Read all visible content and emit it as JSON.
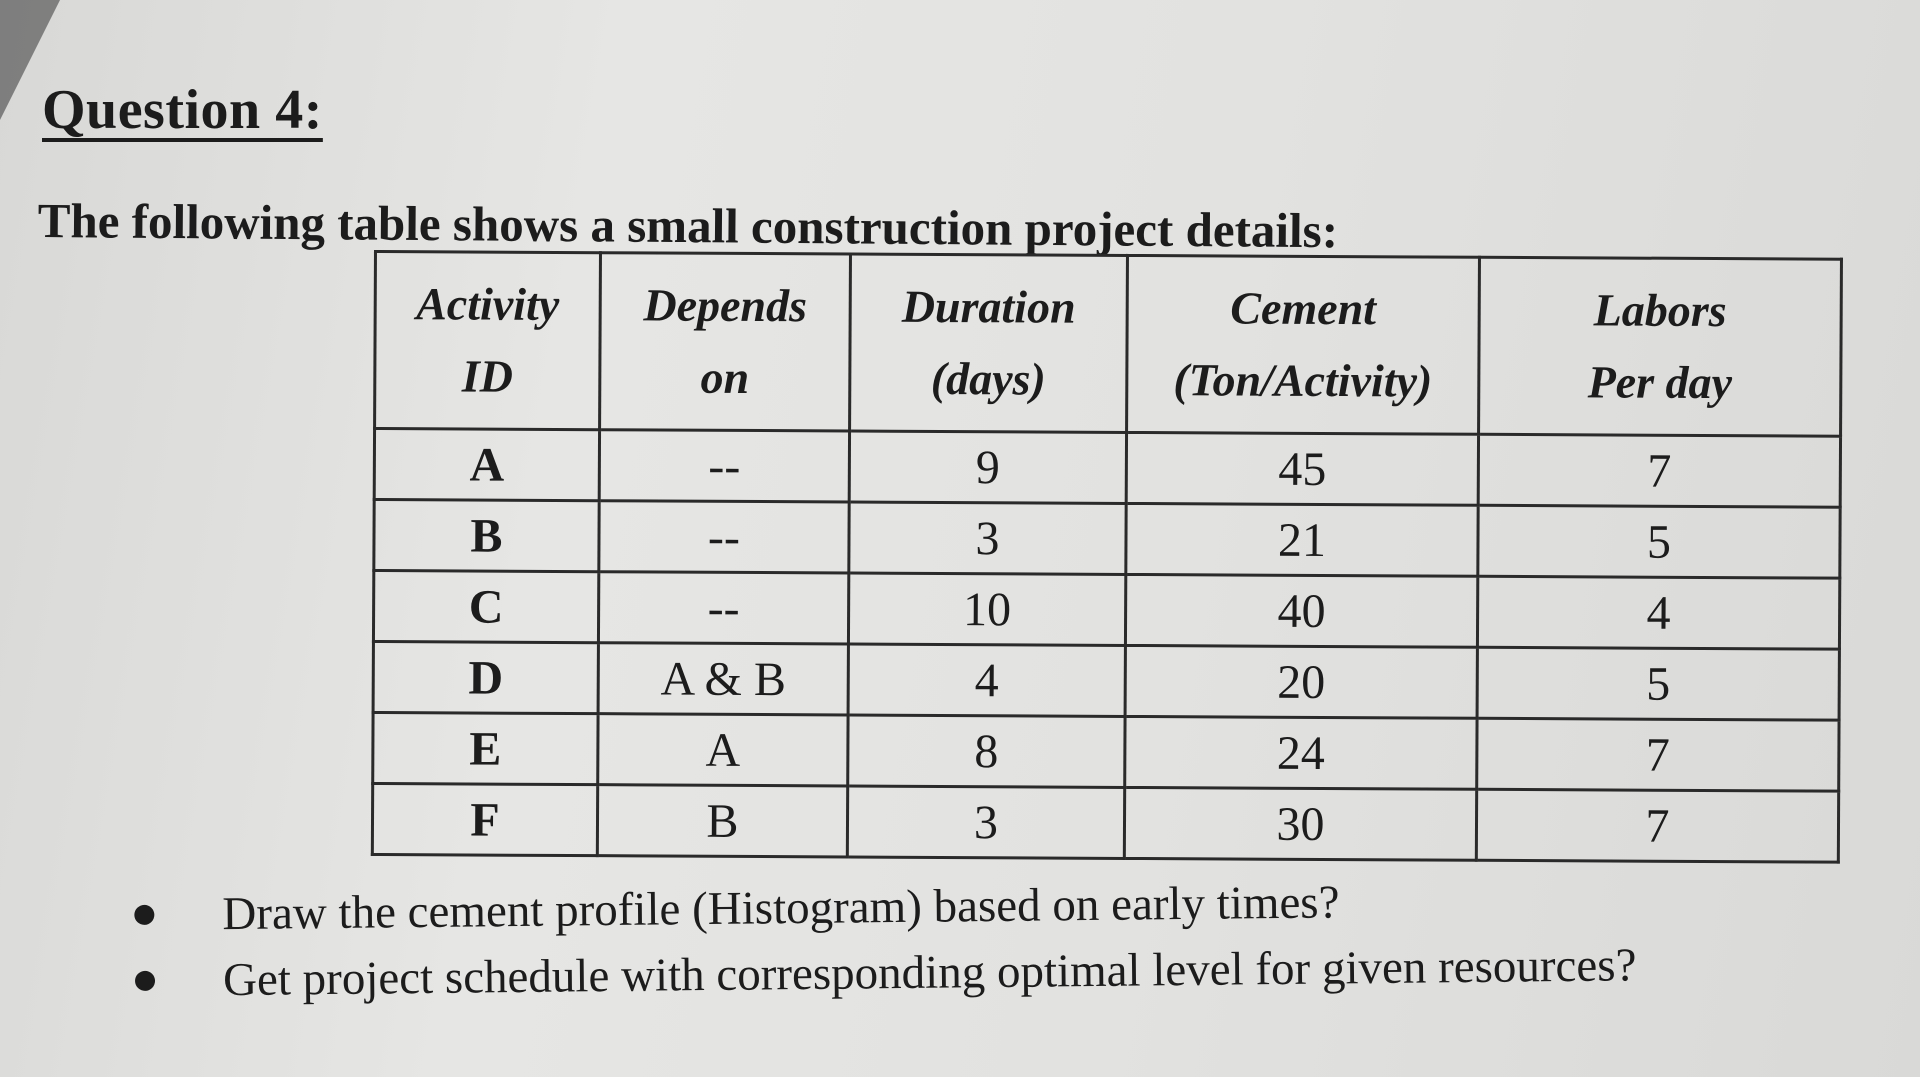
{
  "title": "Question 4:",
  "intro": "The following table shows a small construction project details:",
  "table": {
    "headers": [
      {
        "line1": "Activity",
        "line2": "ID"
      },
      {
        "line1": "Depends",
        "line2": "on"
      },
      {
        "line1": "Duration",
        "line2": "(days)"
      },
      {
        "line1": "Cement",
        "line2": "(Ton/Activity)"
      },
      {
        "line1": "Labors",
        "line2": "Per day"
      }
    ],
    "rows": [
      {
        "id": "A",
        "depends": "--",
        "duration": "9",
        "cement": "45",
        "labors": "7"
      },
      {
        "id": "B",
        "depends": "--",
        "duration": "3",
        "cement": "21",
        "labors": "5"
      },
      {
        "id": "C",
        "depends": "--",
        "duration": "10",
        "cement": "40",
        "labors": "4"
      },
      {
        "id": "D",
        "depends": "A & B",
        "duration": "4",
        "cement": "20",
        "labors": "5"
      },
      {
        "id": "E",
        "depends": "A",
        "duration": "8",
        "cement": "24",
        "labors": "7"
      },
      {
        "id": "F",
        "depends": "B",
        "duration": "3",
        "cement": "30",
        "labors": "7"
      }
    ]
  },
  "bullets": [
    "Draw the cement profile (Histogram) based on early times?",
    "Get project schedule with corresponding optimal level for given resources?"
  ]
}
